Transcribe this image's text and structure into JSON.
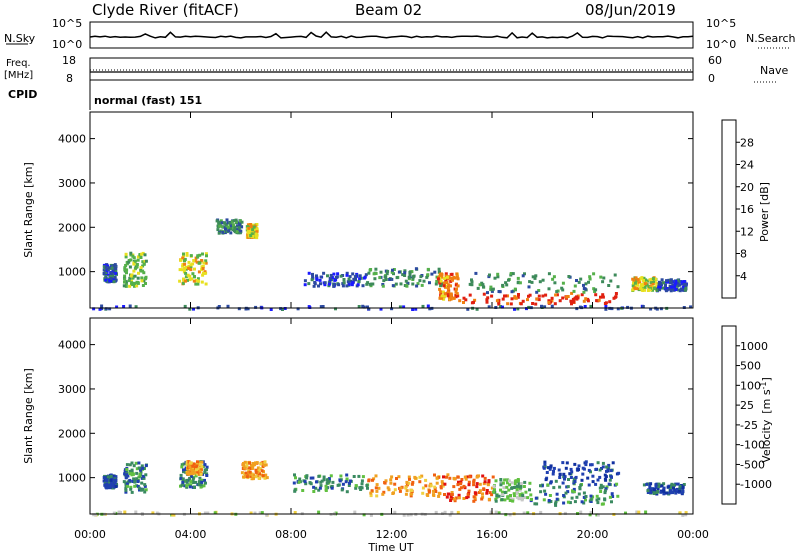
{
  "header": {
    "station": "Clyde River (fitACF)",
    "beam": "Beam 02",
    "date": "08/Jun/2019"
  },
  "status_panels": {
    "nsky_label": "N.Sky",
    "nsky_ticks": [
      "10^5",
      "10^0"
    ],
    "nsearch_label": "N.Search",
    "nsearch_ticks": [
      "10^5",
      "10^0"
    ],
    "freq_label_1": "Freq.",
    "freq_label_2": "[MHz]",
    "freq_ticks": [
      "18",
      "8"
    ],
    "nave_label": "Nave",
    "nave_ticks": [
      "60",
      "0"
    ],
    "cpid_label": "CPID",
    "cpid_value": "normal (fast) 151"
  },
  "chart_data": [
    {
      "type": "heatmap",
      "name": "power",
      "ylabel": "Slant Range [km]",
      "yticks": [
        1000,
        2000,
        3000,
        4000
      ],
      "ylim": [
        180,
        4600
      ],
      "xlim": [
        0,
        24
      ],
      "colorbar_label": "Power [dB]",
      "colorbar_ticks": [
        "4",
        "8",
        "12",
        "16",
        "20",
        "24",
        "28"
      ],
      "colorbar_colors": [
        "#1a1aff",
        "#2c4aa0",
        "#3d8a5a",
        "#55b04a",
        "#e8e020",
        "#f08010",
        "#e02010"
      ],
      "regions": [
        {
          "t0": 1.3,
          "t1": 2.2,
          "r0": 700,
          "r1": 1450,
          "level": 3
        },
        {
          "t0": 3.5,
          "t1": 4.6,
          "r0": 750,
          "r1": 1450,
          "level": 4
        },
        {
          "t0": 0.5,
          "t1": 1.0,
          "r0": 800,
          "r1": 1200,
          "level": 1
        },
        {
          "t0": 6.2,
          "t1": 6.6,
          "r0": 1800,
          "r1": 2100,
          "level": 4
        },
        {
          "t0": 5.0,
          "t1": 6.0,
          "r0": 1900,
          "r1": 2200,
          "level": 2
        },
        {
          "t0": 8.5,
          "t1": 11.0,
          "r0": 700,
          "r1": 1000,
          "level": 1
        },
        {
          "t0": 11.0,
          "t1": 14.0,
          "r0": 700,
          "r1": 1100,
          "level": 2
        },
        {
          "t0": 13.8,
          "t1": 14.6,
          "r0": 400,
          "r1": 1000,
          "level": 5
        },
        {
          "t0": 14.6,
          "t1": 21.0,
          "r0": 300,
          "r1": 550,
          "level": 6
        },
        {
          "t0": 15.0,
          "t1": 21.0,
          "r0": 550,
          "r1": 1000,
          "level": 2
        },
        {
          "t0": 21.5,
          "t1": 22.5,
          "r0": 600,
          "r1": 900,
          "level": 4
        },
        {
          "t0": 22.5,
          "t1": 23.7,
          "r0": 600,
          "r1": 850,
          "level": 1
        },
        {
          "t0": 0,
          "t1": 24,
          "r0": 180,
          "r1": 260,
          "level": 1
        }
      ]
    },
    {
      "type": "heatmap",
      "name": "velocity",
      "ylabel": "Slant Range [km]",
      "xlabel": "Time UT",
      "xticks": [
        "00:00",
        "04:00",
        "08:00",
        "12:00",
        "16:00",
        "20:00",
        "00:00"
      ],
      "yticks": [
        1000,
        2000,
        3000,
        4000
      ],
      "ylim": [
        180,
        4600
      ],
      "xlim": [
        0,
        24
      ],
      "colorbar_label_main": "Velocity",
      "colorbar_label_unit": "[m s",
      "colorbar_label_exp": "-1",
      "colorbar_label_close": "]",
      "colorbar_ticks": [
        "-1000",
        "-500",
        "-100",
        "-25",
        "25",
        "100",
        "500",
        "1000"
      ],
      "colorbar_colors": [
        "#e01010",
        "#f06010",
        "#f0a020",
        "#f0d040",
        "#c8c8c8",
        "#60c040",
        "#3a8a60",
        "#2040b0",
        "#1030a0"
      ],
      "regions": [
        {
          "t0": 1.3,
          "t1": 2.2,
          "r0": 700,
          "r1": 1400,
          "level": 6
        },
        {
          "t0": 0.5,
          "t1": 1.0,
          "r0": 800,
          "r1": 1100,
          "level": 7
        },
        {
          "t0": 3.5,
          "t1": 4.6,
          "r0": 800,
          "r1": 1400,
          "level": 6
        },
        {
          "t0": 3.8,
          "t1": 4.4,
          "r0": 1100,
          "r1": 1400,
          "level": 2
        },
        {
          "t0": 6.0,
          "t1": 7.0,
          "r0": 1000,
          "r1": 1400,
          "level": 2
        },
        {
          "t0": 8.0,
          "t1": 11.0,
          "r0": 700,
          "r1": 1100,
          "level": 6
        },
        {
          "t0": 11.0,
          "t1": 14.0,
          "r0": 600,
          "r1": 1100,
          "level": 2
        },
        {
          "t0": 14.0,
          "t1": 16.0,
          "r0": 500,
          "r1": 1100,
          "level": 1
        },
        {
          "t0": 16.0,
          "t1": 17.5,
          "r0": 500,
          "r1": 1000,
          "level": 5
        },
        {
          "t0": 17.5,
          "t1": 21.0,
          "r0": 400,
          "r1": 900,
          "level": 6
        },
        {
          "t0": 18.0,
          "t1": 21.0,
          "r0": 900,
          "r1": 1400,
          "level": 7
        },
        {
          "t0": 22.0,
          "t1": 23.6,
          "r0": 650,
          "r1": 900,
          "level": 7
        },
        {
          "t0": 0,
          "t1": 24,
          "r0": 180,
          "r1": 260,
          "level": 4
        }
      ]
    }
  ]
}
